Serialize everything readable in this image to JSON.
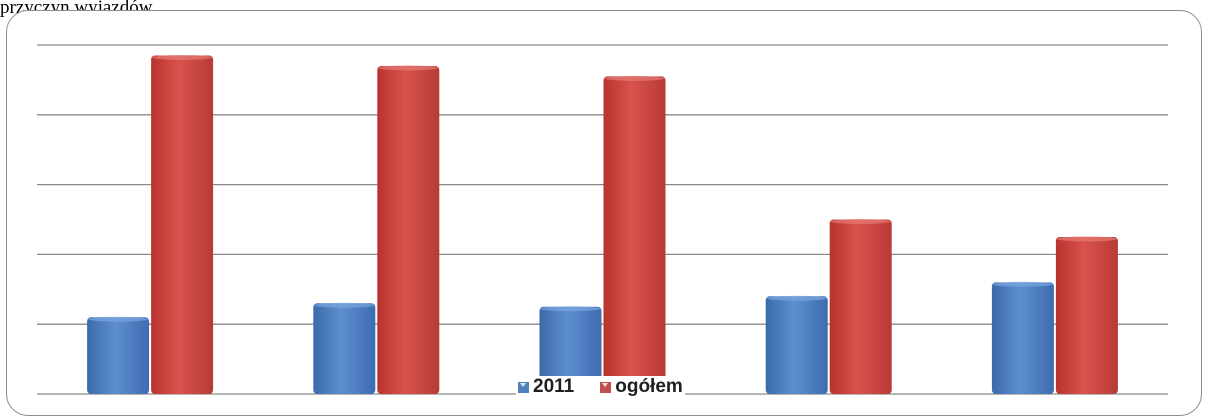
{
  "page": {
    "top_text": "przyczyn wyjazdów"
  },
  "chart_data": {
    "type": "bar",
    "categories": [
      "",
      "",
      "",
      "",
      ""
    ],
    "series": [
      {
        "name": "2011",
        "values": [
          1.1,
          1.3,
          1.25,
          1.4,
          1.6
        ],
        "color": "#4f81bd"
      },
      {
        "name": "ogółem",
        "values": [
          4.85,
          4.7,
          4.55,
          2.5,
          2.25
        ],
        "color": "#c0504d"
      }
    ],
    "ylim": [
      0,
      5
    ],
    "yticks": [
      0,
      1,
      2,
      3,
      4,
      5
    ],
    "grid": true,
    "legend": "bottom",
    "title": "",
    "xlabel": "",
    "ylabel": ""
  }
}
